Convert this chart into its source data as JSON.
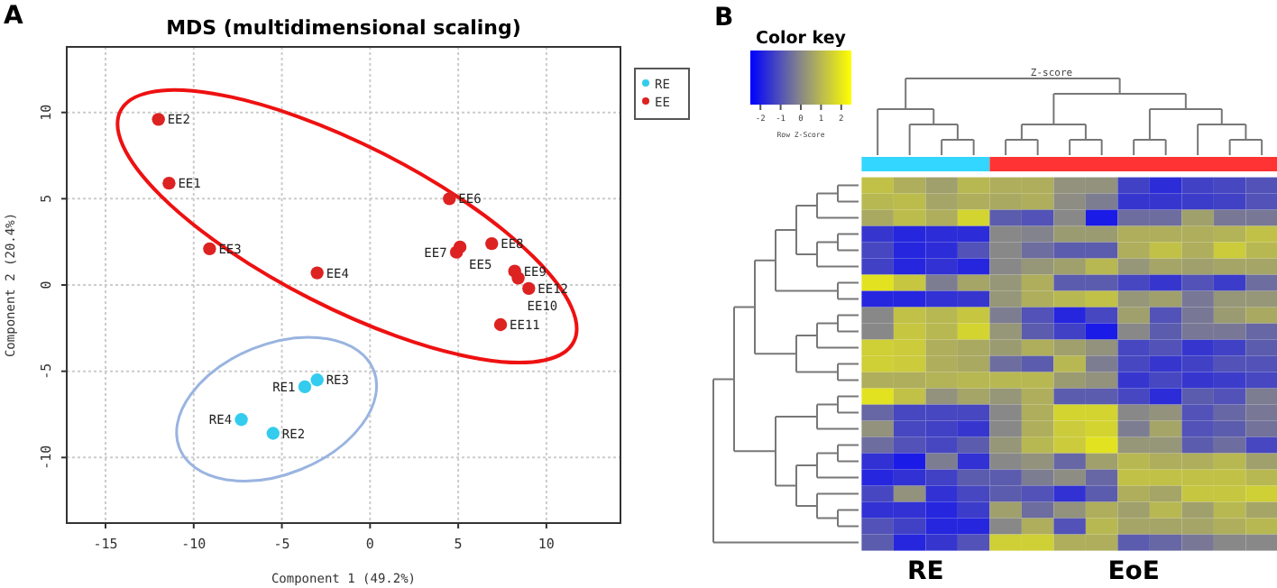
{
  "chart_data": [
    {
      "type": "scatter",
      "title": "MDS (multidimensional scaling)",
      "xlabel": "Component 1 (49.2%)",
      "ylabel": "Component 2 (20.4%)",
      "xlim": [
        -17.2,
        14.2
      ],
      "ylim": [
        -13.8,
        13.8
      ],
      "xticks": [
        -15,
        -10,
        -5,
        0,
        5,
        10
      ],
      "yticks": [
        -10,
        -5,
        0,
        5,
        10
      ],
      "grid": true,
      "legend": "right",
      "marker": "circle",
      "series": [
        {
          "name": "RE",
          "color": "#33ccee",
          "x": [
            -3.7,
            -5.5,
            -3.0,
            -7.3
          ],
          "values": [
            -5.9,
            -8.6,
            -5.5,
            -7.8
          ]
        },
        {
          "name": "EE",
          "color": "#dd2222",
          "x": [
            -11.4,
            -12.0,
            -9.1,
            -3.0,
            5.1,
            4.5,
            4.9,
            6.9,
            8.2,
            8.4,
            7.4,
            9.0
          ],
          "values": [
            5.9,
            9.6,
            2.1,
            0.7,
            2.2,
            5.0,
            1.9,
            2.4,
            0.8,
            0.4,
            -2.3,
            -0.2
          ]
        }
      ],
      "annotations": [
        "A",
        {
          "text": "RE1",
          "x": -3.7,
          "y": -5.9
        },
        {
          "text": "RE2",
          "x": -5.5,
          "y": -8.6
        },
        {
          "text": "RE3",
          "x": -3.0,
          "y": -5.5
        },
        {
          "text": "RE4",
          "x": -7.3,
          "y": -7.8
        },
        {
          "text": "EE1",
          "x": -11.4,
          "y": 5.9
        },
        {
          "text": "EE2",
          "x": -12.0,
          "y": 9.6
        },
        {
          "text": "EE3",
          "x": -9.1,
          "y": 2.1
        },
        {
          "text": "EE4",
          "x": -3.0,
          "y": 0.7
        },
        {
          "text": "EE5",
          "x": 5.1,
          "y": 2.2
        },
        {
          "text": "EE6",
          "x": 4.5,
          "y": 5.0
        },
        {
          "text": "EE7",
          "x": 4.9,
          "y": 1.9
        },
        {
          "text": "EE8",
          "x": 6.9,
          "y": 2.4
        },
        {
          "text": "EE9",
          "x": 8.2,
          "y": 0.8
        },
        {
          "text": "EE10",
          "x": 8.4,
          "y": 0.4
        },
        {
          "text": "EE11",
          "x": 7.4,
          "y": -2.3
        },
        {
          "text": "EE12",
          "x": 9.0,
          "y": -0.2
        }
      ]
    },
    {
      "type": "heatmap",
      "legend_title": "Color key",
      "clabel": "Row Z-Score",
      "clim": [
        -2.5,
        2.5
      ],
      "cticks": [
        -2,
        -1,
        0,
        1,
        2
      ],
      "categories": [
        null,
        null,
        null,
        null,
        null,
        null,
        null,
        null,
        null,
        null,
        null,
        null,
        null
      ],
      "y_categories": [
        null,
        null,
        null,
        null,
        null,
        null,
        null,
        null,
        null,
        null,
        null,
        null,
        null,
        null,
        null,
        null,
        null,
        null,
        null,
        null,
        null,
        null,
        null
      ],
      "cells": [
        [
          1.2,
          0.8,
          0.5,
          1.0,
          0.8,
          0.8,
          0.2,
          0.2,
          -1.3,
          -1.7,
          -1.3,
          -1.2,
          -1.0
        ],
        [
          1.0,
          1.1,
          0.6,
          0.8,
          0.7,
          0.8,
          0.1,
          -0.2,
          -1.5,
          -1.5,
          -1.4,
          -1.3,
          -1.0
        ],
        [
          0.7,
          1.1,
          0.8,
          1.6,
          -0.8,
          -1.0,
          0.0,
          -2.0,
          -0.5,
          -0.5,
          0.5,
          -0.3,
          -0.3
        ],
        [
          -1.5,
          -1.8,
          -1.7,
          -1.7,
          0.0,
          -0.1,
          0.4,
          0.4,
          0.8,
          0.8,
          0.8,
          0.9,
          1.2
        ],
        [
          -1.2,
          -1.8,
          -1.7,
          -1.0,
          0.0,
          -0.5,
          -0.8,
          -0.8,
          0.8,
          1.2,
          0.8,
          1.4,
          1.0
        ],
        [
          -1.3,
          -1.8,
          -1.6,
          -1.8,
          0.0,
          0.3,
          0.5,
          1.0,
          0.3,
          0.6,
          0.5,
          0.6,
          0.6
        ],
        [
          1.9,
          1.3,
          -0.2,
          0.6,
          0.3,
          0.8,
          -0.8,
          -0.8,
          -1.2,
          -1.5,
          -1.0,
          -1.4,
          -0.5
        ],
        [
          -1.8,
          -1.8,
          -1.6,
          -1.5,
          0.3,
          0.8,
          1.0,
          1.2,
          0.3,
          0.5,
          -0.3,
          0.3,
          0.3
        ],
        [
          0.0,
          1.2,
          1.0,
          1.3,
          -0.2,
          -1.0,
          -1.8,
          -1.2,
          0.5,
          -1.0,
          -0.3,
          0.4,
          0.7
        ],
        [
          0.0,
          1.3,
          1.0,
          1.6,
          0.3,
          -0.8,
          -1.3,
          -2.0,
          0.0,
          -0.8,
          -0.3,
          -0.3,
          -0.6
        ],
        [
          1.5,
          1.4,
          0.8,
          0.7,
          0.4,
          0.8,
          0.5,
          0.2,
          -1.2,
          -1.0,
          -1.5,
          -1.3,
          -0.8
        ],
        [
          1.5,
          1.4,
          0.8,
          0.7,
          -0.5,
          -0.8,
          1.0,
          -0.2,
          -1.2,
          -1.5,
          -1.3,
          -1.0,
          -1.0
        ],
        [
          0.8,
          0.8,
          0.9,
          1.0,
          1.0,
          1.0,
          0.4,
          0.2,
          -1.5,
          -1.2,
          -1.5,
          -1.4,
          -1.2
        ],
        [
          1.9,
          1.2,
          0.2,
          0.6,
          0.3,
          0.8,
          -0.8,
          -0.8,
          -1.2,
          -1.7,
          -0.8,
          -1.0,
          -0.2
        ],
        [
          -0.6,
          -1.2,
          -1.2,
          -1.2,
          0.0,
          0.8,
          1.6,
          1.6,
          0.0,
          0.2,
          -1.0,
          -0.6,
          -0.3
        ],
        [
          0.2,
          -1.2,
          -1.3,
          -1.5,
          0.0,
          0.8,
          1.4,
          1.6,
          -0.2,
          0.6,
          -1.0,
          -0.8,
          -0.4
        ],
        [
          -0.5,
          -1.0,
          -1.2,
          -0.8,
          0.3,
          1.0,
          1.4,
          1.9,
          0.3,
          0.3,
          -0.8,
          -0.5,
          -1.2
        ],
        [
          -1.6,
          -2.0,
          -0.2,
          -1.6,
          0.0,
          0.2,
          -0.6,
          0.5,
          1.0,
          0.8,
          0.8,
          1.0,
          0.5
        ],
        [
          -1.8,
          -1.6,
          -1.3,
          -0.8,
          -0.8,
          -0.2,
          0.1,
          -0.6,
          1.2,
          1.2,
          1.2,
          1.2,
          1.0
        ],
        [
          -1.2,
          0.2,
          -1.6,
          -1.2,
          -0.8,
          -1.0,
          -1.6,
          -0.8,
          0.8,
          0.6,
          1.3,
          1.3,
          1.5
        ],
        [
          -1.6,
          -1.6,
          -1.8,
          -1.4,
          0.5,
          -0.5,
          0.2,
          0.8,
          0.5,
          1.0,
          0.5,
          1.0,
          0.6
        ],
        [
          -1.0,
          -1.3,
          -1.8,
          -1.8,
          0.0,
          0.8,
          -1.0,
          1.0,
          0.6,
          0.6,
          0.6,
          0.8,
          1.0
        ],
        [
          -0.8,
          -1.8,
          -1.5,
          -1.0,
          1.5,
          1.5,
          0.8,
          0.8,
          -0.8,
          -0.6,
          -0.3,
          0.0,
          0.0
        ]
      ],
      "annotations": [
        "B",
        "Z-score",
        "RE",
        "EoE"
      ]
    }
  ]
}
